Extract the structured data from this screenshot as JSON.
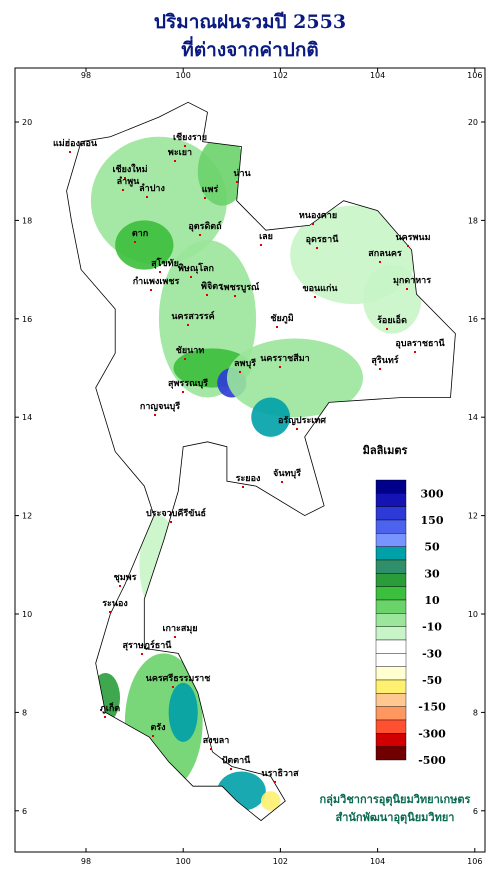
{
  "header": {
    "title": [
      "ปริมาณฝนรวมปี  2553",
      "ที่ต่างจากค่าปกติ"
    ]
  },
  "map": {
    "xticks": [
      98,
      100,
      102,
      104,
      106
    ],
    "yticks": [
      6,
      8,
      10,
      12,
      14,
      16,
      18,
      20
    ],
    "places": [
      "เชียงราย",
      "แม่ฮ่องสอน",
      "เชียงใหม่",
      "พะเยา",
      "น่าน",
      "ลำพูน",
      "ลำปาง",
      "แพร่",
      "อุตรดิตถ์",
      "ตาก",
      "เลย",
      "หนองคาย",
      "อุดรธานี",
      "สกลนคร",
      "นครพนม",
      "มุกดาหาร",
      "สุโขทัย",
      "พิษณุโลก",
      "กำแพงเพชร",
      "พิจิตร",
      "เพชรบูรณ์",
      "ขอนแก่น",
      "นครสวรรค์",
      "ชัยภูมิ",
      "ร้อยเอ็ด",
      "อุบลราชธานี",
      "ชัยนาท",
      "ลพบุรี",
      "นครราชสีมา",
      "สุรินทร์",
      "กาญจนบุรี",
      "สุพรรณบุรี",
      "อรัญประเทศ",
      "ระยอง",
      "จันทบุรี",
      "ประจวบคีรีขันธ์",
      "ชุมพร",
      "ระนอง",
      "สุราษฎร์ธานี",
      "เกาะสมุย",
      "นครศรีธรรมราช",
      "ภูเก็ต",
      "ตรัง",
      "สงขลา",
      "ปัตตานี",
      "นราธิวาส"
    ]
  },
  "legend": {
    "title": "มิลลิเมตร",
    "colors": [
      "#00008b",
      "#1414b4",
      "#2d3ad8",
      "#4e62f0",
      "#7894ff",
      "#00a0a8",
      "#2f8f6a",
      "#2a9d3a",
      "#3cbf3c",
      "#6ad36a",
      "#9be69b",
      "#c8f5c8",
      "#ffffff",
      "#ffffff",
      "#ffffd0",
      "#fff070",
      "#ffc890",
      "#ff9860",
      "#ff5030",
      "#d00000",
      "#700000"
    ],
    "labels": [
      300,
      150,
      50,
      30,
      10,
      -10,
      -30,
      -50,
      -150,
      -300,
      -500
    ]
  },
  "credit": [
    "กลุ่มวิชาการอุตุนิยมวิทยาเกษตร",
    "สำนักพัฒนาอุตุนิยมวิทยา"
  ]
}
